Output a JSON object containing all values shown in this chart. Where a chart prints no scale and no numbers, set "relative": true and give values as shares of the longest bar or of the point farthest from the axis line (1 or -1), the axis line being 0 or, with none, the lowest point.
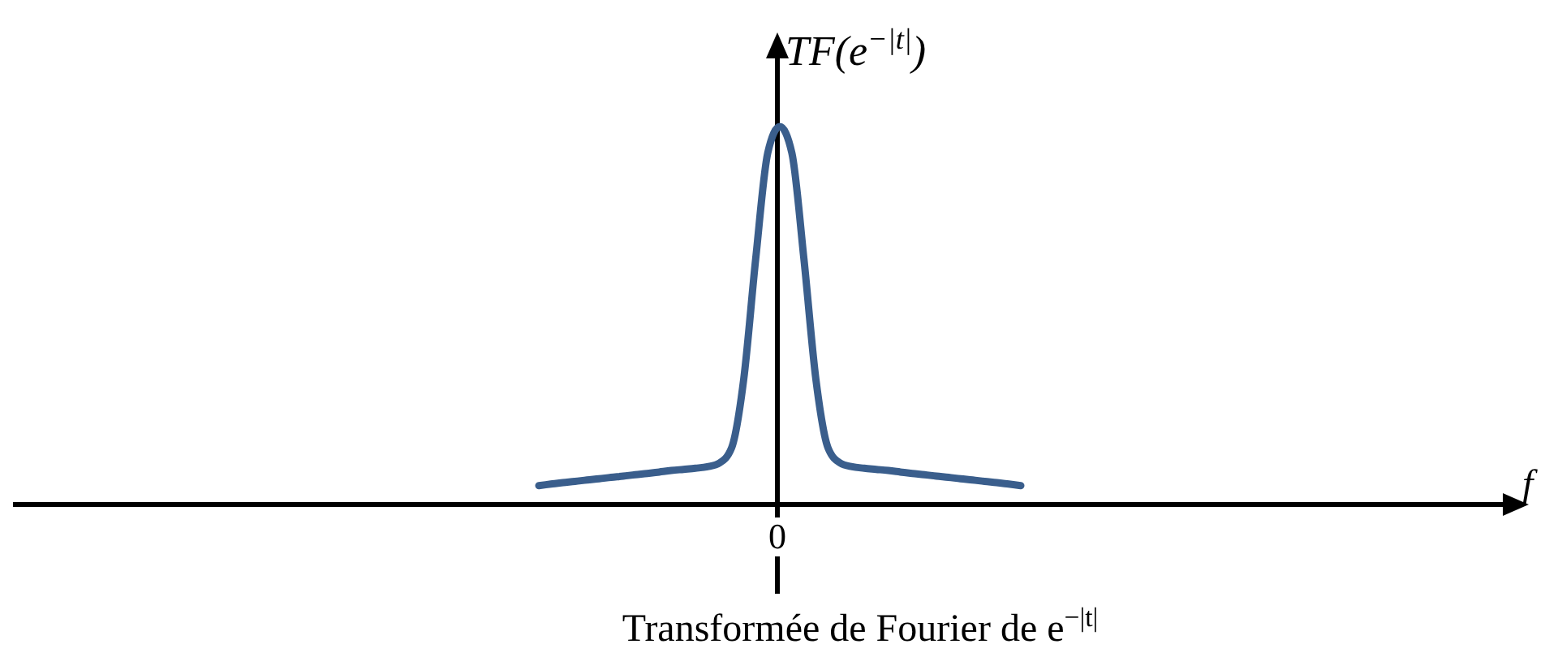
{
  "chart_data": {
    "type": "line",
    "relative": true,
    "title": "Transformée de Fourier de e$^{−|t|}$",
    "annotations": [
      "0",
      "f"
    ],
    "ylabel": "TF(e$^{−|t|}$)",
    "categories": [
      null,
      null,
      null,
      null,
      null,
      null,
      null,
      null,
      null,
      null,
      null,
      null,
      null,
      null,
      null,
      null,
      null,
      null,
      null,
      null,
      null,
      null,
      null,
      null,
      null,
      null,
      null,
      null,
      null,
      null,
      null,
      null,
      null,
      null,
      null,
      null,
      null,
      null,
      null,
      null,
      null
    ],
    "series": [
      {
        "color": "#3a5e8c",
        "values": [
          0.05,
          0.054,
          0.058,
          0.061,
          0.065,
          0.068,
          0.072,
          0.075,
          0.079,
          0.082,
          0.086,
          0.09,
          0.093,
          0.096,
          0.1,
          0.11,
          0.15,
          0.33,
          0.65,
          0.93,
          1,
          0.93,
          0.65,
          0.33,
          0.15,
          0.11,
          0.1,
          0.096,
          0.093,
          0.09,
          0.086,
          0.082,
          0.079,
          0.075,
          0.072,
          0.068,
          0.065,
          0.061,
          0.058,
          0.054,
          0.05
        ]
      }
    ]
  }
}
